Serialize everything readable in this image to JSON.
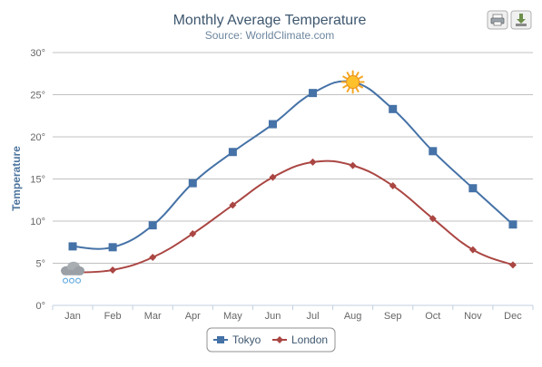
{
  "chart_data": {
    "type": "line",
    "title": "Monthly Average Temperature",
    "subtitle": "Source: WorldClimate.com",
    "ylabel": "Temperature",
    "xlabel": "",
    "categories": [
      "Jan",
      "Feb",
      "Mar",
      "Apr",
      "May",
      "Jun",
      "Jul",
      "Aug",
      "Sep",
      "Oct",
      "Nov",
      "Dec"
    ],
    "ylim": [
      0,
      30
    ],
    "yticks": [
      0,
      5,
      10,
      15,
      20,
      25,
      30
    ],
    "ytick_labels": [
      "0°",
      "5°",
      "10°",
      "15°",
      "20°",
      "25°",
      "30°"
    ],
    "grid": true,
    "legend_position": "bottom-center",
    "series": [
      {
        "name": "Tokyo",
        "color": "#4572A7",
        "marker": "square",
        "values": [
          7.0,
          6.9,
          9.5,
          14.5,
          18.2,
          21.5,
          25.2,
          26.5,
          23.3,
          18.3,
          13.9,
          9.6
        ]
      },
      {
        "name": "London",
        "color": "#AA4643",
        "marker": "diamond",
        "values": [
          3.9,
          4.2,
          5.7,
          8.5,
          11.9,
          15.2,
          17.0,
          16.6,
          14.2,
          10.3,
          6.6,
          4.8
        ]
      }
    ],
    "special_markers": [
      {
        "series": "Tokyo",
        "category": "Aug",
        "icon": "sun-icon"
      },
      {
        "series": "London",
        "category": "Jan",
        "icon": "snow-cloud-icon"
      }
    ]
  },
  "toolbar": {
    "print_icon": "printer-icon",
    "export_icon": "download-icon"
  }
}
